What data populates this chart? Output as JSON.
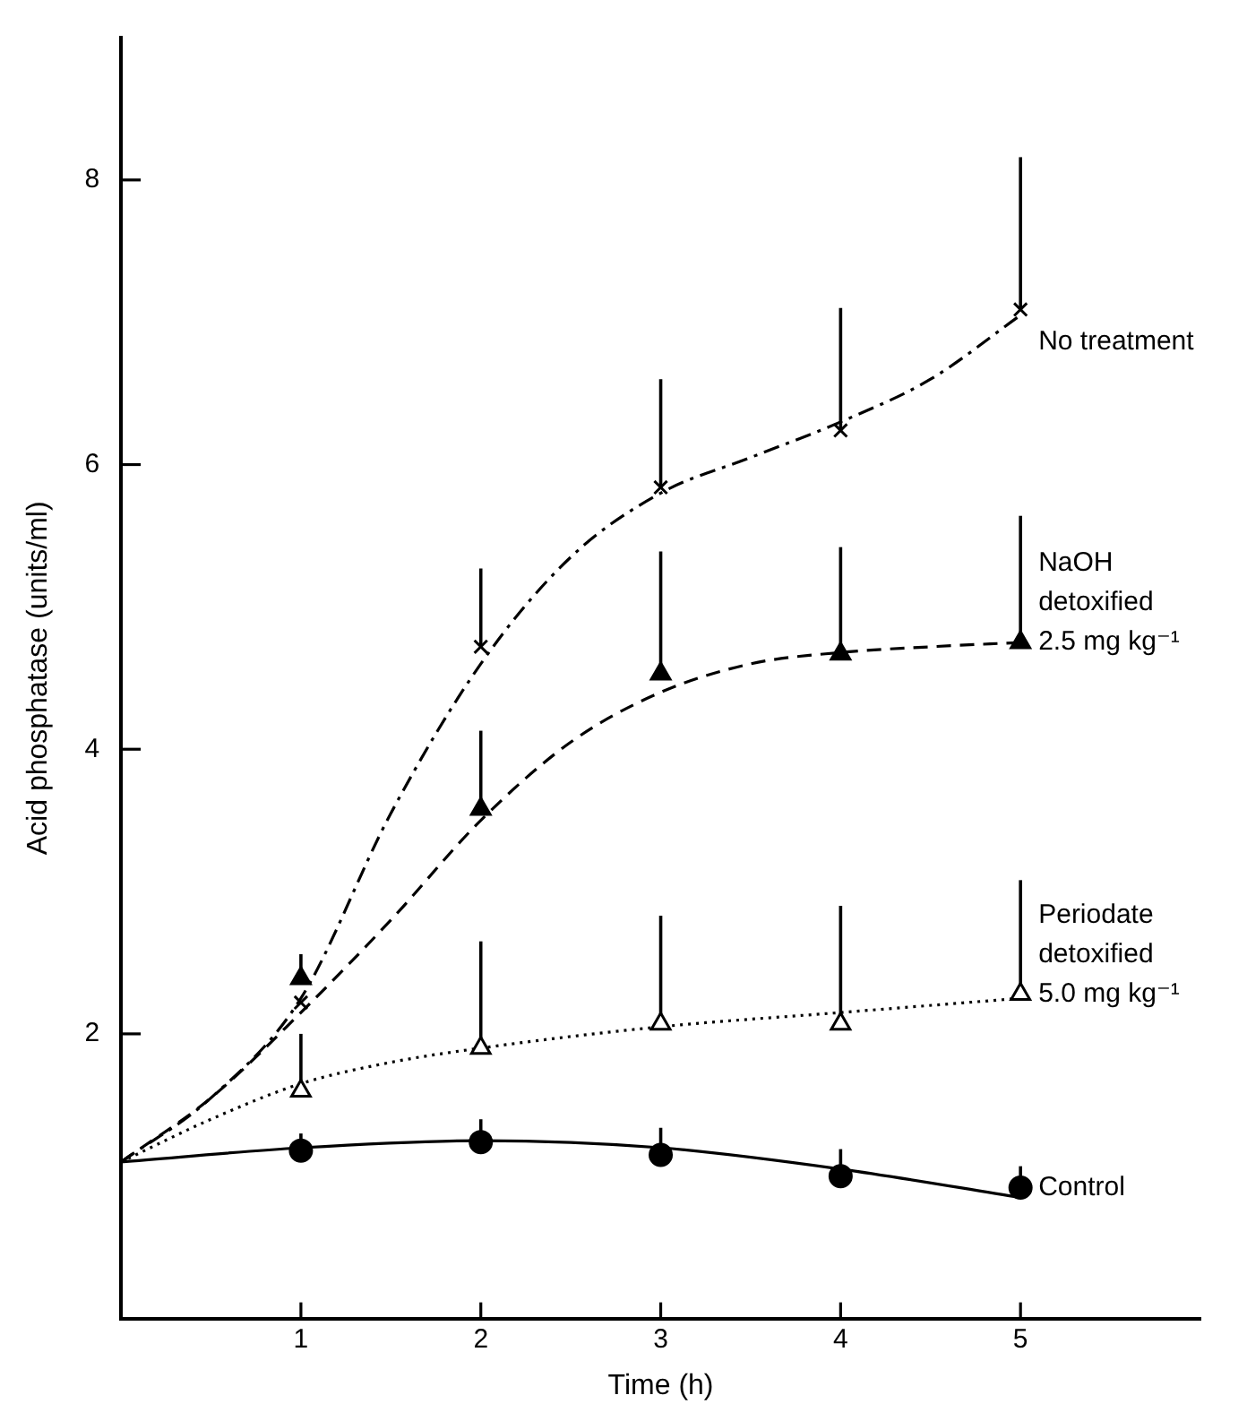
{
  "chart_data": {
    "type": "scatter",
    "xlabel": "Time (h)",
    "ylabel": "Acid phosphatase (units/ml)",
    "xlim": [
      0,
      6
    ],
    "xticks": [
      1,
      2,
      3,
      4,
      5
    ],
    "ylim": [
      0,
      9
    ],
    "yticks": [
      2,
      4,
      6,
      8
    ],
    "grid": false,
    "legend": false,
    "series": [
      {
        "name": "No treatment",
        "color": "#000000",
        "marker": "cross",
        "x": [
          1,
          2,
          3,
          4,
          5
        ],
        "values": [
          2.22,
          4.72,
          5.84,
          6.24,
          7.09
        ],
        "errors": [
          null,
          [
            4.72,
            5.27
          ],
          [
            5.84,
            6.6
          ],
          [
            6.24,
            7.1
          ],
          [
            7.09,
            8.16
          ]
        ]
      },
      {
        "name": "NaOH detoxified 2.5 mg kg⁻¹",
        "color": "#000000",
        "marker": "triangle",
        "x": [
          1,
          2,
          3,
          4,
          5
        ],
        "values": [
          2.39,
          3.58,
          4.53,
          4.67,
          4.75
        ],
        "errors": [
          [
            2.39,
            2.56
          ],
          [
            3.58,
            4.13
          ],
          [
            4.53,
            5.39
          ],
          [
            4.67,
            5.42
          ],
          [
            4.75,
            5.64
          ]
        ]
      },
      {
        "name": "Periodate detoxified 5.0 mg kg⁻¹",
        "color": "#000000",
        "marker": "triangle-open",
        "x": [
          1,
          2,
          3,
          4,
          5
        ],
        "values": [
          1.6,
          1.9,
          2.07,
          2.07,
          2.28
        ],
        "errors": [
          [
            1.6,
            2.0
          ],
          [
            1.9,
            2.65
          ],
          [
            2.07,
            2.83
          ],
          [
            2.07,
            2.9
          ],
          [
            2.28,
            3.08
          ]
        ]
      },
      {
        "name": "Control",
        "color": "#000000",
        "marker": "circle",
        "x": [
          1,
          2,
          3,
          4,
          5
        ],
        "values": [
          1.18,
          1.24,
          1.15,
          1.0,
          0.92
        ],
        "errors": [
          [
            1.18,
            1.3
          ],
          [
            1.24,
            1.4
          ],
          [
            1.15,
            1.34
          ],
          [
            1.0,
            1.19
          ],
          [
            0.92,
            1.07
          ]
        ]
      },
      {
        "type": "line",
        "color": "#000000",
        "marker": "none",
        "line_style": "dashdot",
        "x": [
          0,
          0.5,
          1,
          1.5,
          2,
          2.5,
          3,
          3.5,
          4,
          4.5,
          5
        ],
        "values": [
          1.1,
          1.55,
          2.25,
          3.55,
          4.6,
          5.35,
          5.8,
          6.05,
          6.3,
          6.6,
          7.05
        ]
      },
      {
        "type": "line",
        "color": "#000000",
        "marker": "none",
        "line_style": "dashed",
        "x": [
          0,
          0.5,
          1,
          1.5,
          2,
          2.5,
          3,
          3.5,
          4,
          4.5,
          5
        ],
        "values": [
          1.1,
          1.55,
          2.15,
          2.8,
          3.5,
          4.05,
          4.4,
          4.6,
          4.68,
          4.72,
          4.75
        ]
      },
      {
        "type": "line",
        "color": "#000000",
        "marker": "none",
        "line_style": "dotted",
        "x": [
          0,
          0.5,
          1,
          1.5,
          2,
          3,
          4,
          5
        ],
        "values": [
          1.1,
          1.4,
          1.65,
          1.8,
          1.9,
          2.05,
          2.15,
          2.25
        ]
      },
      {
        "type": "line",
        "color": "#000000",
        "marker": "none",
        "line_style": "solid",
        "x": [
          0,
          1,
          2,
          3,
          4,
          5
        ],
        "values": [
          1.1,
          1.2,
          1.25,
          1.2,
          1.05,
          0.85
        ]
      }
    ]
  }
}
